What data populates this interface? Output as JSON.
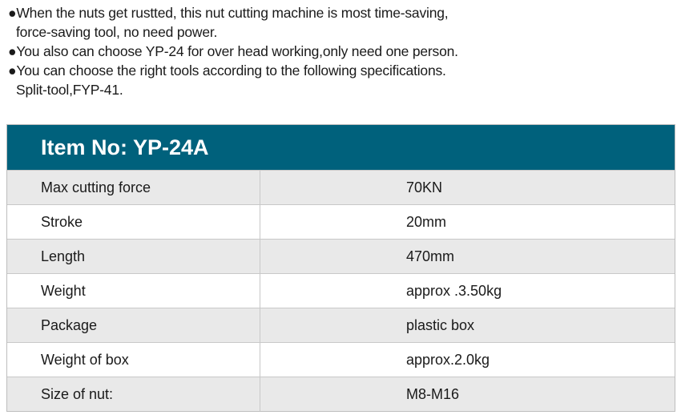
{
  "intro": {
    "bullets": [
      {
        "line1": "●When the nuts get rustted, this nut cutting machine is most time-saving,",
        "line2": "force-saving tool, no need power."
      },
      {
        "line1": "●You also can choose YP-24 for over head working,only need one person.",
        "line2": ""
      },
      {
        "line1": "●You can choose the right tools according to the following specifications.",
        "line2": "Split-tool,FYP-41."
      }
    ]
  },
  "table": {
    "title": "Item No: YP-24A",
    "header_color": "#00617c",
    "rows": [
      {
        "label": "Max cutting force",
        "value": "70KN"
      },
      {
        "label": "Stroke",
        "value": "20mm"
      },
      {
        "label": "Length",
        "value": "470mm"
      },
      {
        "label": "Weight",
        "value": "approx .3.50kg"
      },
      {
        "label": "Package",
        "value": "plastic box"
      },
      {
        "label": "Weight of box",
        "value": "approx.2.0kg"
      },
      {
        "label": "Size of nut:",
        "value": "M8-M16"
      }
    ]
  }
}
